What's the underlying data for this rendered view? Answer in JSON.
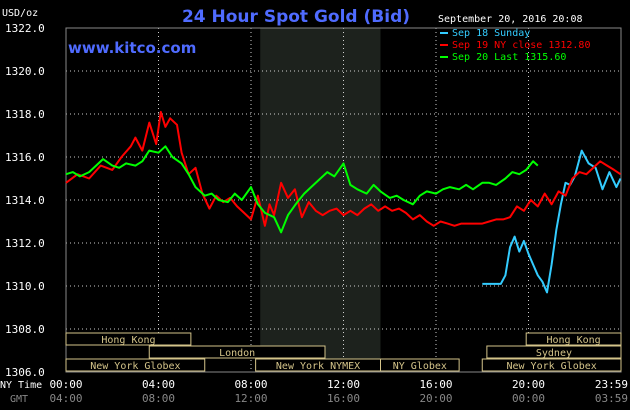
{
  "chart_data": {
    "type": "line",
    "title": "24 Hour Spot Gold (Bid)",
    "watermark": "www.kitco.com",
    "timestamp": "September 20, 2016 20:08",
    "ylabel": "USD/oz",
    "ylim": [
      1306.0,
      1322.0
    ],
    "y_ticks": [
      "1322.0",
      "1320.0",
      "1318.0",
      "1316.0",
      "1314.0",
      "1312.0",
      "1310.0",
      "1308.0",
      "1306.0"
    ],
    "x_row1_label": "NY Time",
    "x_row2_label": "GMT",
    "x_ticks_ny": [
      "00:00",
      "04:00",
      "08:00",
      "12:00",
      "16:00",
      "20:00",
      "23:59"
    ],
    "x_ticks_gmt": [
      "04:00",
      "08:00",
      "12:00",
      "16:00",
      "20:00",
      "00:00",
      "03:59"
    ],
    "legend": [
      {
        "label": "Sep 18 Sunday",
        "color": "#33ccff"
      },
      {
        "label": "Sep 19 NY close 1312.80",
        "color": "#ff0000"
      },
      {
        "label": "Sep 20 Last 1315.60",
        "color": "#00ff00"
      }
    ],
    "market_sessions": [
      {
        "label": "Hong Kong",
        "start": 0.0,
        "end": 5.4,
        "row": 1
      },
      {
        "label": "London",
        "start": 3.6,
        "end": 11.2,
        "row": 2
      },
      {
        "label": "New York Globex",
        "start": 0.0,
        "end": 6.0,
        "row": 3
      },
      {
        "label": "New York NYMEX",
        "start": 8.2,
        "end": 13.6,
        "row": 3
      },
      {
        "label": "NY Globex",
        "start": 13.6,
        "end": 17.0,
        "row": 3
      },
      {
        "label": "Hong Kong",
        "start": 19.9,
        "end": 24.0,
        "row": 1
      },
      {
        "label": "Sydney",
        "start": 18.2,
        "end": 24.0,
        "row": 2
      },
      {
        "label": "New York Globex",
        "start": 18.0,
        "end": 24.0,
        "row": 3
      }
    ],
    "series": [
      {
        "name": "Sep 18 Sunday",
        "color": "#33ccff",
        "x": [
          18.0,
          18.5,
          18.8,
          19.0,
          19.2,
          19.4,
          19.6,
          19.8,
          20.0,
          20.2,
          20.4,
          20.6,
          20.8,
          21.0,
          21.2,
          21.4,
          21.6,
          21.8,
          22.0,
          22.3,
          22.6,
          22.9,
          23.2,
          23.5,
          23.8,
          23.98
        ],
        "y": [
          1310.1,
          1310.1,
          1310.1,
          1310.5,
          1311.8,
          1312.3,
          1311.6,
          1312.1,
          1311.5,
          1311.0,
          1310.5,
          1310.2,
          1309.7,
          1311.0,
          1312.6,
          1313.8,
          1314.8,
          1314.7,
          1315.1,
          1316.3,
          1315.7,
          1315.5,
          1314.5,
          1315.3,
          1314.6,
          1315.0
        ]
      },
      {
        "name": "Sep 19 NY close 1312.80",
        "color": "#ff0000",
        "x": [
          0.0,
          0.5,
          1.0,
          1.5,
          2.0,
          2.4,
          2.8,
          3.0,
          3.3,
          3.6,
          3.9,
          4.1,
          4.3,
          4.5,
          4.8,
          5.0,
          5.3,
          5.6,
          5.9,
          6.2,
          6.5,
          6.8,
          7.1,
          7.4,
          7.7,
          8.0,
          8.3,
          8.6,
          8.8,
          9.0,
          9.3,
          9.6,
          9.9,
          10.2,
          10.5,
          10.8,
          11.1,
          11.4,
          11.7,
          12.0,
          12.3,
          12.6,
          12.9,
          13.2,
          13.5,
          13.8,
          14.1,
          14.4,
          14.7,
          15.0,
          15.3,
          15.6,
          15.9,
          16.2,
          16.5,
          16.8,
          17.1,
          17.4,
          17.7,
          18.0,
          18.3,
          18.6,
          18.9,
          19.2,
          19.5,
          19.8,
          20.1,
          20.4,
          20.7,
          21.0,
          21.3,
          21.6,
          21.9,
          22.2,
          22.5,
          22.8,
          23.1,
          23.4,
          23.7,
          23.98
        ],
        "y": [
          1314.8,
          1315.2,
          1315.0,
          1315.6,
          1315.4,
          1316.0,
          1316.5,
          1316.9,
          1316.3,
          1317.6,
          1316.6,
          1318.1,
          1317.4,
          1317.8,
          1317.5,
          1316.2,
          1315.2,
          1315.5,
          1314.3,
          1313.6,
          1314.2,
          1313.9,
          1314.1,
          1313.7,
          1313.4,
          1313.1,
          1314.2,
          1312.8,
          1313.8,
          1313.3,
          1314.8,
          1314.1,
          1314.5,
          1313.2,
          1313.9,
          1313.5,
          1313.3,
          1313.5,
          1313.6,
          1313.3,
          1313.5,
          1313.3,
          1313.6,
          1313.8,
          1313.5,
          1313.7,
          1313.5,
          1313.6,
          1313.4,
          1313.1,
          1313.3,
          1313.0,
          1312.8,
          1313.0,
          1312.9,
          1312.8,
          1312.9,
          1312.9,
          1312.9,
          1312.9,
          1313.0,
          1313.1,
          1313.1,
          1313.2,
          1313.7,
          1313.5,
          1314.0,
          1313.7,
          1314.3,
          1313.8,
          1314.4,
          1314.2,
          1315.0,
          1315.3,
          1315.2,
          1315.5,
          1315.8,
          1315.6,
          1315.4,
          1315.2
        ]
      },
      {
        "name": "Sep 20 Last 1315.60",
        "color": "#00ff00",
        "x": [
          0.0,
          0.3,
          0.6,
          1.0,
          1.3,
          1.6,
          2.0,
          2.3,
          2.6,
          3.0,
          3.3,
          3.6,
          4.0,
          4.3,
          4.6,
          5.0,
          5.3,
          5.6,
          6.0,
          6.3,
          6.6,
          7.0,
          7.3,
          7.6,
          8.0,
          8.3,
          8.6,
          9.0,
          9.3,
          9.6,
          10.0,
          10.3,
          10.6,
          11.0,
          11.3,
          11.6,
          12.0,
          12.3,
          12.6,
          13.0,
          13.3,
          13.6,
          14.0,
          14.3,
          14.6,
          15.0,
          15.3,
          15.6,
          16.0,
          16.3,
          16.6,
          17.0,
          17.3,
          17.6,
          18.0,
          18.3,
          18.6,
          19.0,
          19.3,
          19.6,
          19.9,
          20.2,
          20.4
        ],
        "y": [
          1315.2,
          1315.3,
          1315.1,
          1315.3,
          1315.6,
          1315.9,
          1315.6,
          1315.5,
          1315.7,
          1315.6,
          1315.8,
          1316.3,
          1316.2,
          1316.5,
          1316.0,
          1315.7,
          1315.2,
          1314.6,
          1314.2,
          1314.3,
          1314.0,
          1313.9,
          1314.3,
          1314.0,
          1314.6,
          1313.8,
          1313.4,
          1313.2,
          1312.5,
          1313.3,
          1313.9,
          1314.3,
          1314.6,
          1315.0,
          1315.3,
          1315.1,
          1315.7,
          1314.7,
          1314.5,
          1314.3,
          1314.7,
          1314.4,
          1314.1,
          1314.2,
          1314.0,
          1313.8,
          1314.2,
          1314.4,
          1314.3,
          1314.5,
          1314.6,
          1314.5,
          1314.7,
          1314.5,
          1314.8,
          1314.8,
          1314.7,
          1315.0,
          1315.3,
          1315.2,
          1315.4,
          1315.8,
          1315.6
        ]
      }
    ]
  }
}
